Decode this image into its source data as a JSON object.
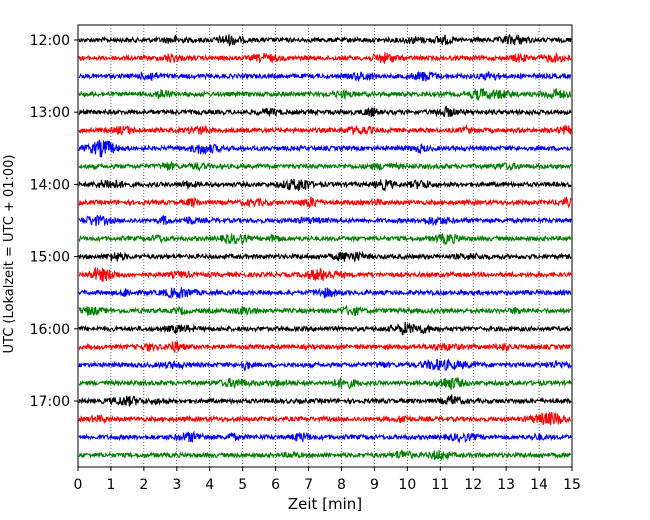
{
  "chart_data": {
    "type": "line",
    "title": "",
    "xlabel": "Zeit  [min]",
    "ylabel": "UTC (Lokalzeit = UTC + 01:00)",
    "xlim": [
      0,
      15
    ],
    "x_ticks": [
      0,
      1,
      2,
      3,
      4,
      5,
      6,
      7,
      8,
      9,
      10,
      11,
      12,
      13,
      14,
      15
    ],
    "y_tick_labels": [
      "12:00",
      "13:00",
      "14:00",
      "15:00",
      "16:00",
      "17:00"
    ],
    "trace_interval_minutes": 15,
    "grid": "vertical-dotted",
    "line_colors": [
      "#000000",
      "#ff0000",
      "#0000ff",
      "#008000"
    ],
    "traces": [
      {
        "start": "12:00",
        "color": "#000000"
      },
      {
        "start": "12:15",
        "color": "#ff0000"
      },
      {
        "start": "12:30",
        "color": "#0000ff"
      },
      {
        "start": "12:45",
        "color": "#008000"
      },
      {
        "start": "13:00",
        "color": "#000000"
      },
      {
        "start": "13:15",
        "color": "#ff0000"
      },
      {
        "start": "13:30",
        "color": "#0000ff"
      },
      {
        "start": "13:45",
        "color": "#008000"
      },
      {
        "start": "14:00",
        "color": "#000000"
      },
      {
        "start": "14:15",
        "color": "#ff0000"
      },
      {
        "start": "14:30",
        "color": "#0000ff"
      },
      {
        "start": "14:45",
        "color": "#008000"
      },
      {
        "start": "15:00",
        "color": "#000000"
      },
      {
        "start": "15:15",
        "color": "#ff0000"
      },
      {
        "start": "15:30",
        "color": "#0000ff"
      },
      {
        "start": "15:45",
        "color": "#008000"
      },
      {
        "start": "16:00",
        "color": "#000000"
      },
      {
        "start": "16:15",
        "color": "#ff0000"
      },
      {
        "start": "16:30",
        "color": "#0000ff"
      },
      {
        "start": "16:45",
        "color": "#008000"
      },
      {
        "start": "17:00",
        "color": "#000000"
      },
      {
        "start": "17:15",
        "color": "#ff0000"
      },
      {
        "start": "17:30",
        "color": "#0000ff"
      },
      {
        "start": "17:45",
        "color": "#008000"
      }
    ]
  }
}
